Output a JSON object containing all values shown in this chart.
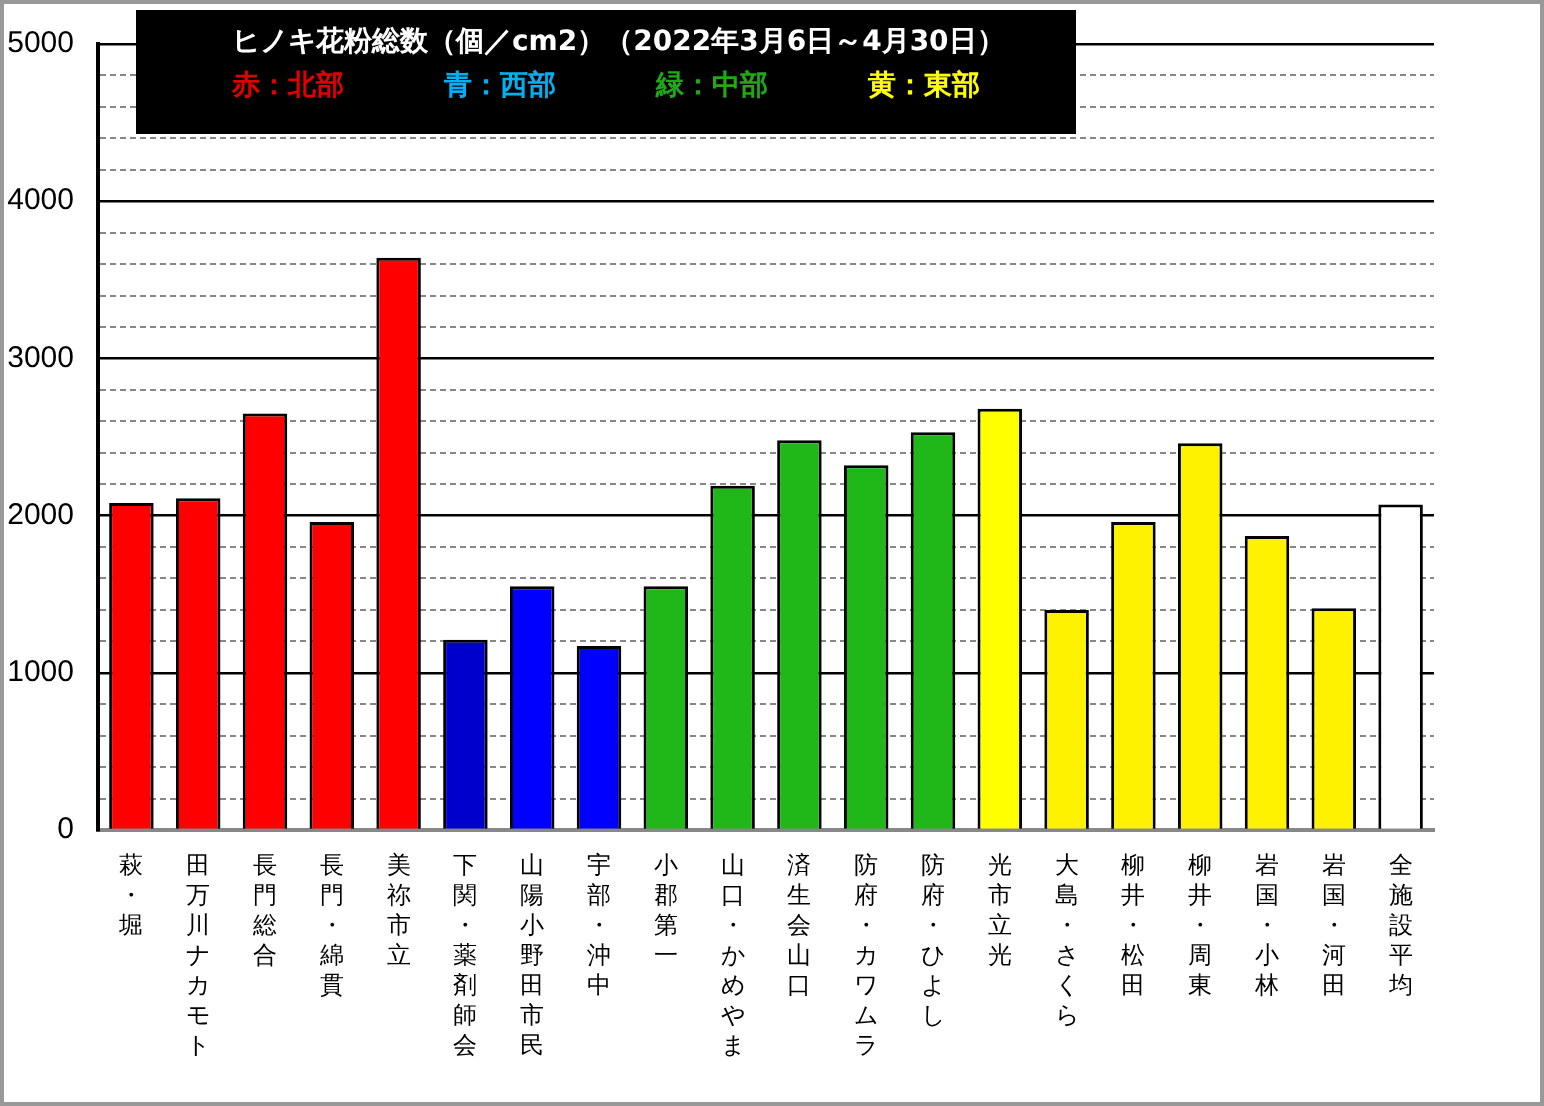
{
  "chart_data": {
    "type": "bar",
    "title": "ヒノキ花粉総数（個／cm2）（2022年3月6日～4月30日）",
    "annotations": [
      "赤：北部",
      "青：西部",
      "緑：中部",
      "黄：東部"
    ],
    "categories": [
      "萩・堀",
      "田万川ナカモト",
      "長門総合",
      "長門・綿貫",
      "美祢市立",
      "下関・薬剤師会",
      "山陽小野田市民",
      "宇部・沖中",
      "小郡第一",
      "山口・かめやま",
      "済生会山口",
      "防府・カワムラ",
      "防府・ひよし",
      "光市立光",
      "大島・さくら",
      "柳井・松田",
      "柳井・周東",
      "岩国・小林",
      "岩国・河田",
      "全施設平均"
    ],
    "values": [
      2080,
      2110,
      2650,
      1960,
      3640,
      1210,
      1550,
      1170,
      1550,
      2190,
      2480,
      2320,
      2530,
      2680,
      1400,
      1960,
      2460,
      1870,
      1410,
      2070
    ],
    "colors": [
      "#ff0000",
      "#ff0000",
      "#ff0000",
      "#ff0000",
      "#ff0000",
      "#0000cc",
      "#0000ff",
      "#0000ff",
      "#20b818",
      "#20b818",
      "#20b818",
      "#20b818",
      "#20b818",
      "#ffff00",
      "#fff200",
      "#fff200",
      "#fff200",
      "#fff200",
      "#fff200",
      "#ffffff"
    ],
    "ylim": [
      0,
      5000
    ],
    "yticks": [
      0,
      {
        "value": 200,
        "label": null
      },
      {
        "value": 400,
        "label": null
      },
      {
        "value": 600,
        "label": null
      },
      {
        "value": 800,
        "label": null
      },
      1000,
      {
        "value": 1200,
        "label": null
      },
      {
        "value": 1400,
        "label": null
      },
      {
        "value": 1600,
        "label": null
      },
      {
        "value": 1800,
        "label": null
      },
      2000,
      {
        "value": 2200,
        "label": null
      },
      {
        "value": 2400,
        "label": null
      },
      {
        "value": 2600,
        "label": null
      },
      {
        "value": 2800,
        "label": null
      },
      3000,
      {
        "value": 3200,
        "label": null
      },
      {
        "value": 3400,
        "label": null
      },
      {
        "value": 3600,
        "label": null
      },
      {
        "value": 3800,
        "label": null
      },
      4000,
      {
        "value": 4200,
        "label": null
      },
      {
        "value": 4400,
        "label": null
      },
      {
        "value": 4600,
        "label": null
      },
      {
        "value": 4800,
        "label": null
      },
      5000
    ],
    "grid": "y",
    "legend": false
  }
}
